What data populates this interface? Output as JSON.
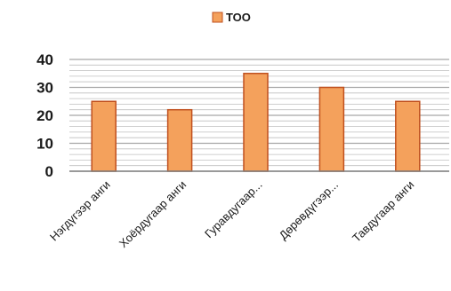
{
  "chart_data": {
    "type": "bar",
    "categories": [
      "Нэгдүгээр анги",
      "Хоёрдугаар анги",
      "Гуравдугаар...",
      "Дөрөвдүгээр...",
      "Тавдугаар анги"
    ],
    "series": [
      {
        "name": "ТОО",
        "values": [
          25,
          22,
          35,
          30,
          25
        ],
        "color": "#f4a15c"
      }
    ],
    "yticks": [
      "0",
      "10",
      "20",
      "30",
      "40"
    ],
    "ylim": [
      0,
      40
    ],
    "grid": true,
    "legend": "top-center",
    "bar_edge_color": "#c0501e",
    "gridline_color": "#bfbfbf",
    "axis_color": "#808080"
  }
}
